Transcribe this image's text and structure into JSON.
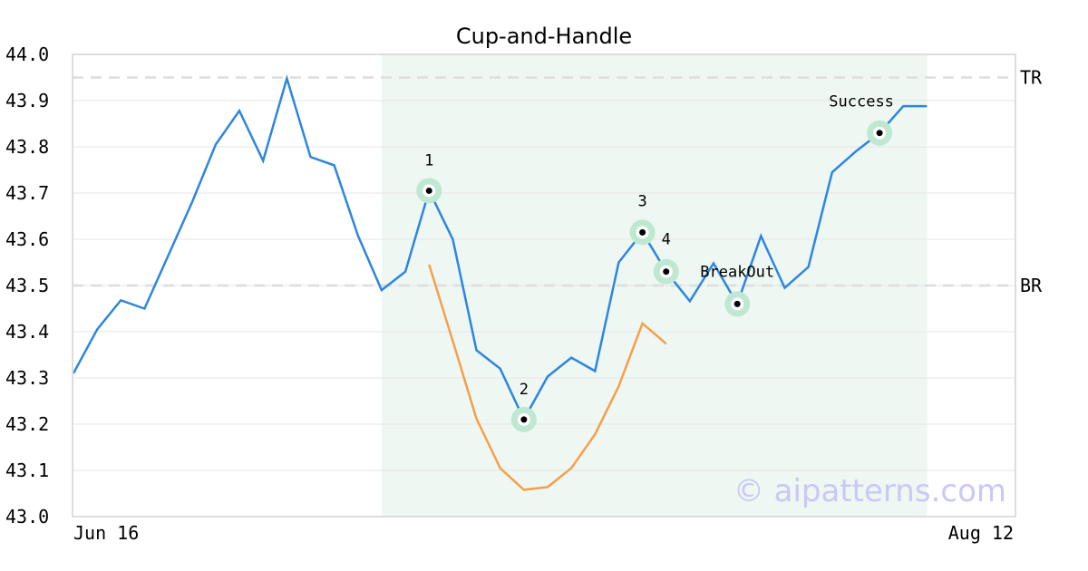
{
  "chart_data": {
    "type": "line",
    "title": "Cup-and-Handle",
    "xlabel": "",
    "ylabel": "",
    "ylim": [
      43.0,
      44.0
    ],
    "y_ticks": [
      "43.0",
      "43.1",
      "43.2",
      "43.3",
      "43.4",
      "43.5",
      "43.6",
      "43.7",
      "43.8",
      "43.9",
      "44.0"
    ],
    "x_tick_labels": [
      "Jun 16",
      "Aug 12"
    ],
    "grid": true,
    "series": [
      {
        "role": "price",
        "color": "#2e86de",
        "values": [
          43.31,
          43.405,
          43.468,
          43.45,
          43.565,
          43.68,
          43.805,
          43.878,
          43.77,
          43.948,
          43.778,
          43.76,
          43.608,
          43.49,
          43.53,
          43.705,
          43.6,
          43.36,
          43.32,
          43.21,
          43.303,
          43.344,
          43.315,
          43.55,
          43.615,
          43.53,
          43.466,
          43.548,
          43.46,
          43.607,
          43.495,
          43.54,
          43.745,
          43.79,
          43.83,
          43.888,
          43.888
        ]
      },
      {
        "role": "cup curve",
        "color": "#f5a04a",
        "start_index": 15,
        "values": [
          43.545,
          43.38,
          43.212,
          43.105,
          43.058,
          43.064,
          43.105,
          43.178,
          43.282,
          43.418,
          43.374
        ]
      }
    ],
    "pattern_region": {
      "from_index": 13,
      "to_index": 36,
      "color": "#eef7f2"
    },
    "levels": [
      {
        "label": "TR",
        "value": 43.95,
        "color": "#dddddd"
      },
      {
        "label": "BR",
        "value": 43.5,
        "color": "#dddddd"
      }
    ],
    "markers": [
      {
        "label": "1",
        "index": 15,
        "value": 43.705,
        "label_pos": "above"
      },
      {
        "label": "2",
        "index": 19,
        "value": 43.21,
        "label_pos": "above"
      },
      {
        "label": "3",
        "index": 24,
        "value": 43.615,
        "label_pos": "above"
      },
      {
        "label": "4",
        "index": 25,
        "value": 43.53,
        "label_pos": "above-right"
      },
      {
        "label": "BreakOut",
        "index": 28,
        "value": 43.46,
        "label_pos": "above"
      },
      {
        "label": "Success",
        "index": 34,
        "value": 43.83,
        "label_pos": "above-left"
      }
    ],
    "marker_halo_color": "#bfe8d3",
    "watermark": "© aipatterns.com"
  }
}
